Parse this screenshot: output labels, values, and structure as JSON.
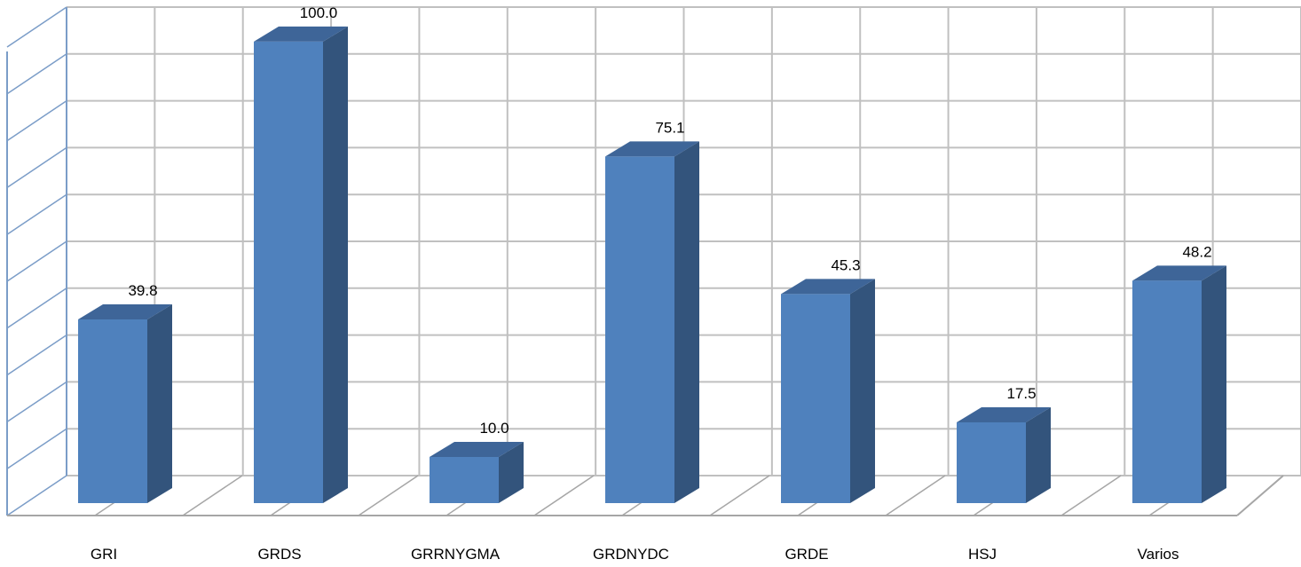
{
  "chart_data": {
    "type": "bar",
    "style": "3d-column",
    "categories": [
      "GRI",
      "GRDS",
      "GRRNYGMA",
      "GRDNYDC",
      "GRDE",
      "HSJ",
      "Varios"
    ],
    "values": [
      39.8,
      100.0,
      10.0,
      75.1,
      45.3,
      17.5,
      48.2
    ],
    "data_labels": [
      "39.8",
      "100.0",
      "10.0",
      "75.1",
      "45.3",
      "17.5",
      "48.2"
    ],
    "title": "",
    "xlabel": "",
    "ylabel": "",
    "ylim": [
      0,
      100
    ],
    "grid": true,
    "legend": "none",
    "colors": {
      "bar_front": "#4f81bd",
      "bar_side": "#33547c",
      "bar_top": "#3e6598",
      "grid": "#c0c0c0",
      "axis": "#7b9dc8",
      "floor": "#a6a6a6"
    }
  }
}
